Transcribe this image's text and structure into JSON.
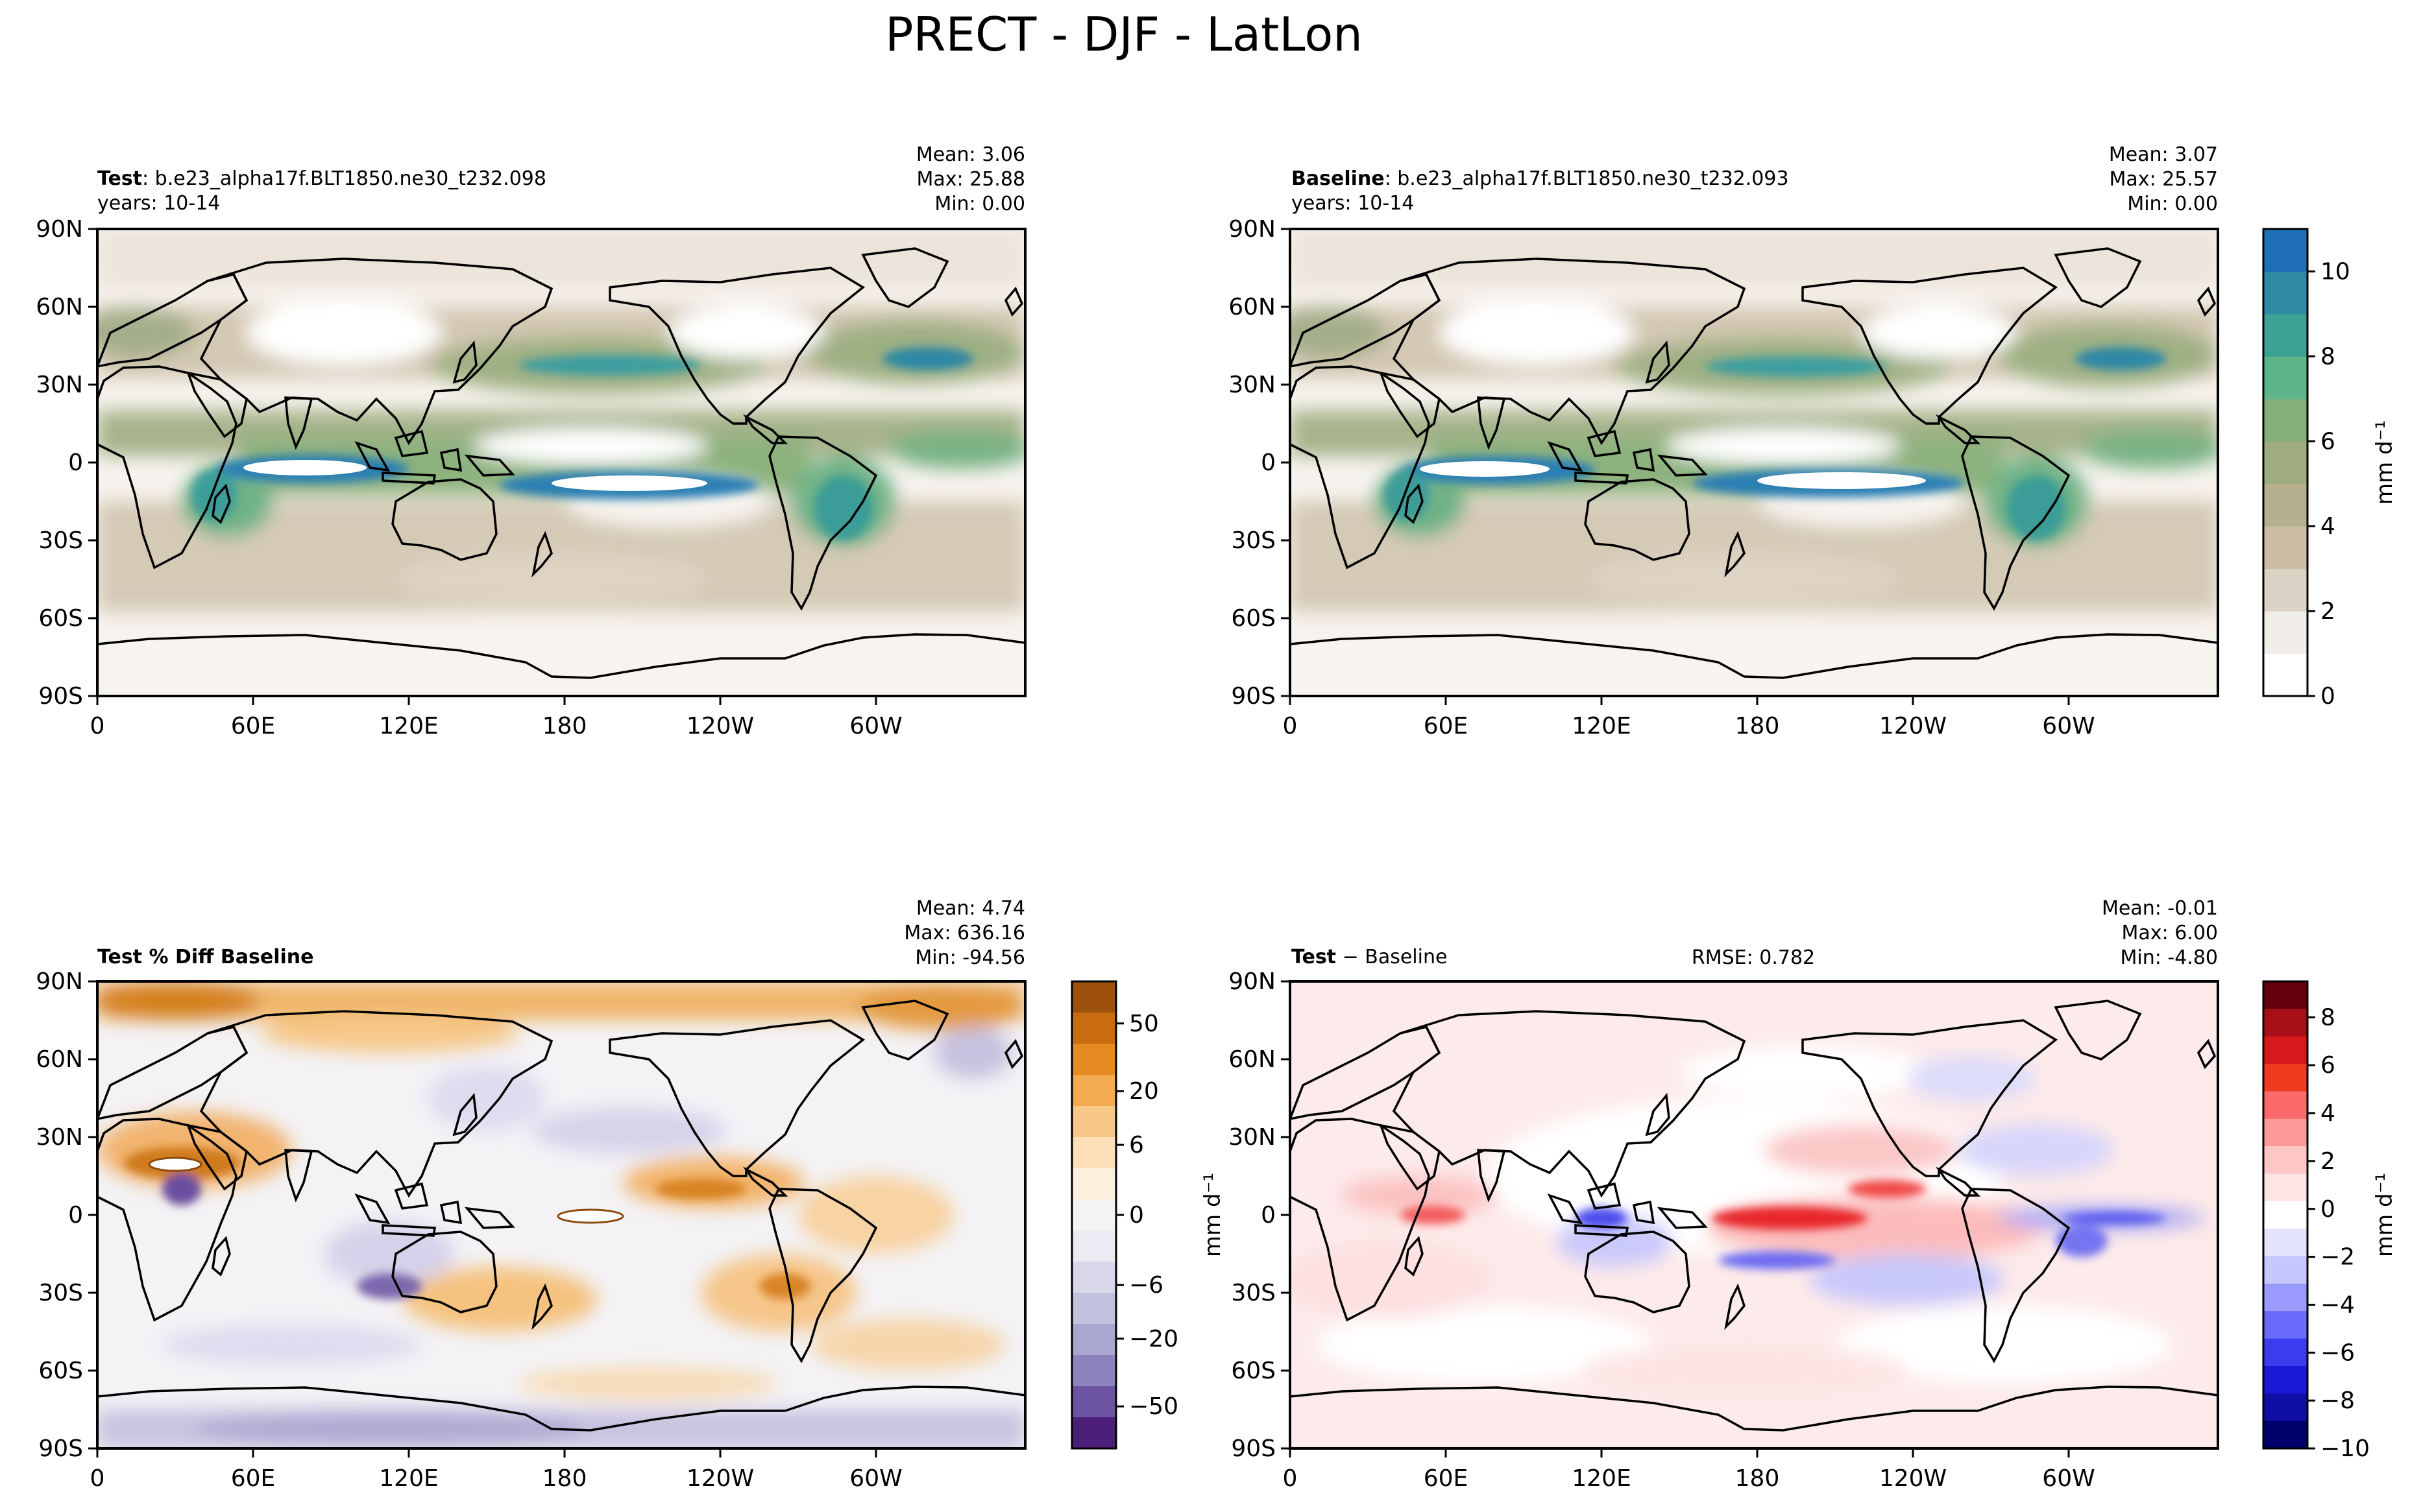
{
  "title": "PRECT - DJF - LatLon",
  "lat_ticks": [
    "90N",
    "60N",
    "30N",
    "0",
    "30S",
    "60S",
    "90S"
  ],
  "lon_ticks": [
    "0",
    "60E",
    "120E",
    "180",
    "120W",
    "60W"
  ],
  "panels": [
    {
      "id": "test",
      "label_bold": "Test",
      "label_rest": ": b.e23_alpha17f.BLT1850.ne30_t232.098",
      "years": "years: 10-14",
      "stats": [
        "Mean:  3.06",
        "Max: 25.88",
        "Min:  0.00"
      ],
      "rmse": "",
      "field": "prect"
    },
    {
      "id": "baseline",
      "label_bold": "Baseline",
      "label_rest": ": b.e23_alpha17f.BLT1850.ne30_t232.093",
      "years": "years: 10-14",
      "stats": [
        "Mean:  3.07",
        "Max: 25.57",
        "Min:  0.00"
      ],
      "rmse": "",
      "field": "prect"
    },
    {
      "id": "pctdiff",
      "label_bold": "Test % Diff Baseline",
      "label_rest": "",
      "years": "",
      "stats": [
        "Mean:  4.74",
        "Max: 636.16",
        "Min: -94.56"
      ],
      "rmse": "",
      "field": "pct"
    },
    {
      "id": "diff",
      "label_bold": "Test",
      "label_rest": " − Baseline",
      "years": "",
      "stats": [
        "Mean: -0.01",
        "Max:  6.00",
        "Min: -4.80"
      ],
      "rmse": "RMSE: 0.782",
      "field": "diff"
    }
  ],
  "colorbars": [
    {
      "id": "prect",
      "label": "mm d⁻¹",
      "ticks": [
        "0",
        "2",
        "4",
        "6",
        "8",
        "10"
      ],
      "colors": [
        "#ffffff",
        "#f1eeea",
        "#ddd2c6",
        "#cbbca6",
        "#b7b08e",
        "#9fac80",
        "#84b07c",
        "#5fb58a",
        "#3da293",
        "#2f8aa3",
        "#1f6fb6"
      ]
    },
    {
      "id": "pct",
      "label": "",
      "ticks": [
        "50",
        "20",
        "6",
        "0",
        "−6",
        "−20",
        "−50"
      ],
      "colors": [
        "#9e500d",
        "#c96c0f",
        "#e68b23",
        "#f3ab52",
        "#f8c888",
        "#fde0b8",
        "#fcefdc",
        "#f6f4f2",
        "#eceaf2",
        "#d8d8ea",
        "#c2c2de",
        "#a9a6cf",
        "#8d84bd",
        "#6d54a3",
        "#4b1f7a"
      ]
    },
    {
      "id": "diff",
      "label": "mm d⁻¹",
      "ticks": [
        "8",
        "6",
        "4",
        "2",
        "0",
        "−2",
        "−4",
        "−6",
        "−8",
        "−10"
      ],
      "colors": [
        "#67000d",
        "#a50f15",
        "#d7191c",
        "#f03b20",
        "#fb6a6a",
        "#fc9a9a",
        "#fdc7c7",
        "#fee4e4",
        "#ffffff",
        "#e4e4fe",
        "#c7c7fd",
        "#9a9afc",
        "#6a6afb",
        "#3b3bf0",
        "#1919d7",
        "#0f0fa5",
        "#00006b"
      ]
    }
  ],
  "side_labels": {
    "diff_left": "mm d⁻¹"
  },
  "colors": {
    "land_outline": "#000000"
  }
}
